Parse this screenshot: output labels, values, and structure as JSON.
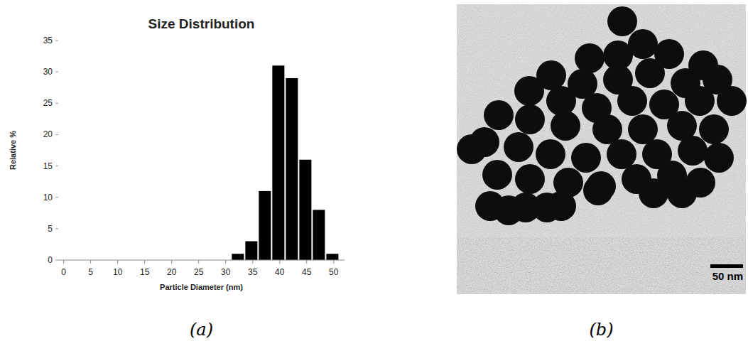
{
  "chart_data": {
    "type": "histogram",
    "title": "Size Distribution",
    "x_label": "Particle Diameter (nm)",
    "y_label": "Relative %",
    "bins": [
      31,
      33.5,
      36,
      38.5,
      41,
      43.5,
      46,
      48.5,
      51
    ],
    "values": [
      1,
      3,
      11,
      31,
      29,
      16,
      8,
      1
    ],
    "color": "#000000",
    "xlim": [
      -1,
      52
    ],
    "xticks": [
      0,
      5,
      10,
      15,
      20,
      25,
      30,
      35,
      40,
      45,
      50
    ],
    "ylim": [
      0,
      35
    ],
    "yticks": [
      0,
      5,
      10,
      15,
      20,
      25,
      30,
      35
    ],
    "grid": false
  },
  "panels": {
    "a": {
      "caption": "(a)"
    },
    "b": {
      "caption": "(b)",
      "scale_bar": "50 nm"
    }
  }
}
